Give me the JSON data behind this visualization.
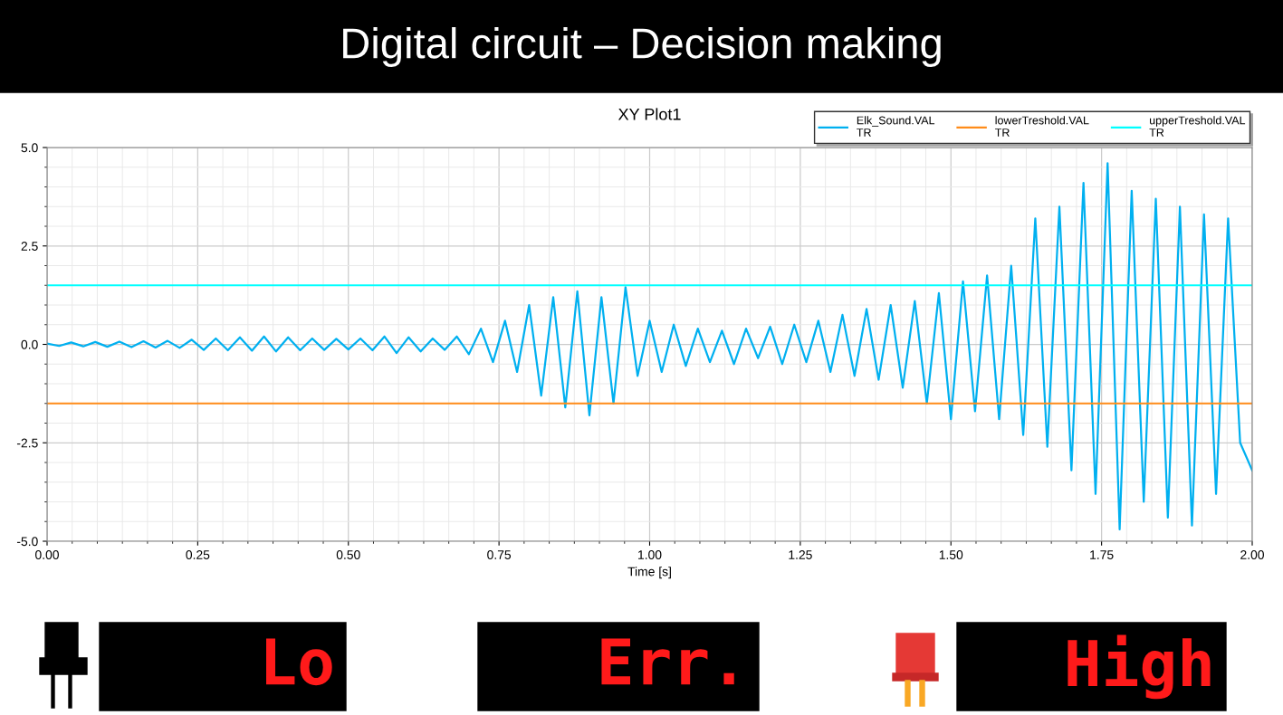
{
  "chart_data": {
    "type": "line",
    "title": "Digital circuit – Decision making",
    "subtitle": "XY Plot1",
    "xlabel": "Time [s]",
    "xlim": [
      0,
      2
    ],
    "xticks": [
      {
        "value": 0,
        "label": "0.00"
      },
      {
        "value": 0.25,
        "label": "0.25"
      },
      {
        "value": 0.5,
        "label": "0.50"
      },
      {
        "value": 0.75,
        "label": "0.75"
      },
      {
        "value": 1,
        "label": "1.00"
      },
      {
        "value": 1.25,
        "label": "1.25"
      },
      {
        "value": 1.5,
        "label": "1.50"
      },
      {
        "value": 1.75,
        "label": "1.75"
      },
      {
        "value": 2,
        "label": "2.00"
      }
    ],
    "ylim": [
      -5,
      5
    ],
    "yticks": [
      {
        "value": -5,
        "label": "-5.0"
      },
      {
        "value": -2.5,
        "label": "-2.5"
      },
      {
        "value": 0,
        "label": "0.0"
      },
      {
        "value": 2.5,
        "label": "2.5"
      },
      {
        "value": 5,
        "label": "5.0"
      }
    ],
    "grid": true,
    "legend": "top right",
    "marker": "none",
    "line_style": "solid",
    "series": [
      {
        "name": "Elk_Sound.VAL\nTR",
        "color": "#00b0f0",
        "x": [
          0.0,
          0.02,
          0.04,
          0.06,
          0.08,
          0.1,
          0.12,
          0.14,
          0.16,
          0.18,
          0.2,
          0.22,
          0.24,
          0.26,
          0.28,
          0.3,
          0.32,
          0.34,
          0.36,
          0.38,
          0.4,
          0.42,
          0.44,
          0.46,
          0.48,
          0.5,
          0.52,
          0.54,
          0.56,
          0.58,
          0.6,
          0.62,
          0.64,
          0.66,
          0.68,
          0.7,
          0.72,
          0.74,
          0.76,
          0.78,
          0.8,
          0.82,
          0.84,
          0.86,
          0.88,
          0.9,
          0.92,
          0.94,
          0.96,
          0.98,
          1.0,
          1.02,
          1.04,
          1.06,
          1.08,
          1.1,
          1.12,
          1.14,
          1.16,
          1.18,
          1.2,
          1.22,
          1.24,
          1.26,
          1.28,
          1.3,
          1.32,
          1.34,
          1.36,
          1.38,
          1.4,
          1.42,
          1.44,
          1.46,
          1.48,
          1.5,
          1.52,
          1.54,
          1.56,
          1.58,
          1.6,
          1.62,
          1.64,
          1.66,
          1.68,
          1.7,
          1.72,
          1.74,
          1.76,
          1.78,
          1.8,
          1.82,
          1.84,
          1.86,
          1.88,
          1.9,
          1.92,
          1.94,
          1.96,
          1.98,
          2.0
        ],
        "values": [
          0.02,
          -0.04,
          0.05,
          -0.05,
          0.06,
          -0.06,
          0.07,
          -0.07,
          0.08,
          -0.08,
          0.09,
          -0.09,
          0.12,
          -0.14,
          0.15,
          -0.15,
          0.18,
          -0.16,
          0.2,
          -0.18,
          0.18,
          -0.15,
          0.15,
          -0.14,
          0.14,
          -0.13,
          0.15,
          -0.15,
          0.2,
          -0.22,
          0.18,
          -0.18,
          0.15,
          -0.14,
          0.2,
          -0.25,
          0.4,
          -0.45,
          0.6,
          -0.7,
          1.0,
          -1.3,
          1.2,
          -1.6,
          1.35,
          -1.8,
          1.2,
          -1.5,
          1.45,
          -0.8,
          0.6,
          -0.7,
          0.5,
          -0.55,
          0.4,
          -0.45,
          0.35,
          -0.5,
          0.4,
          -0.35,
          0.45,
          -0.5,
          0.5,
          -0.45,
          0.6,
          -0.7,
          0.75,
          -0.8,
          0.9,
          -0.9,
          1.0,
          -1.1,
          1.1,
          -1.5,
          1.3,
          -1.9,
          1.6,
          -1.7,
          1.75,
          -1.9,
          2.0,
          -2.3,
          3.2,
          -2.6,
          3.5,
          -3.2,
          4.1,
          -3.8,
          4.6,
          -4.7,
          3.9,
          -4.0,
          3.7,
          -4.4,
          3.5,
          -4.6,
          3.3,
          -3.8,
          3.2,
          -2.5,
          -3.2
        ]
      },
      {
        "name": "lowerTreshold.VAL\nTR",
        "color": "#ff8c1a",
        "x": [
          0,
          2
        ],
        "values": [
          -1.5,
          -1.5
        ]
      },
      {
        "name": "upperTreshold.VAL\nTR",
        "color": "#00ffff",
        "x": [
          0,
          2
        ],
        "values": [
          1.5,
          1.5
        ]
      }
    ],
    "annotations": [
      "Lo",
      "Err.",
      "High"
    ]
  }
}
